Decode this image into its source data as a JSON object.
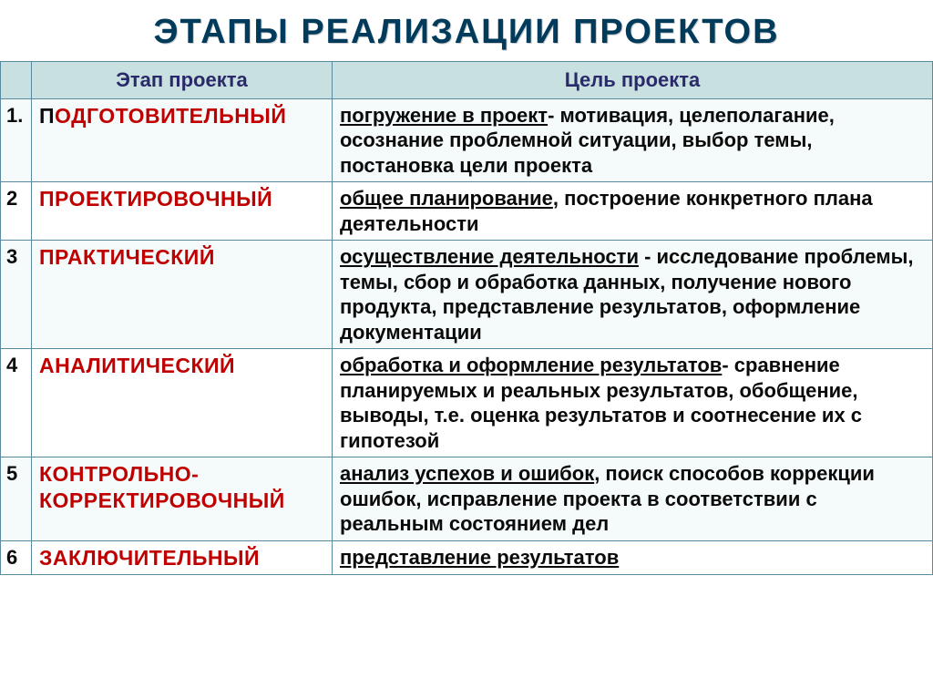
{
  "title": "ЭТАПЫ  РЕАЛИЗАЦИИ  ПРОЕКТОВ",
  "headers": {
    "stage": "Этап проекта",
    "goal": "Цель проекта"
  },
  "rows": [
    {
      "num": "1.",
      "stage_black_first": "П",
      "stage_rest": "ОДГОТОВИТЕЛЬНЫЙ",
      "goal_u": "погружение в проект",
      "goal_rest": "- мотивация, целеполагание, осознание проблемной ситуации, выбор темы, постановка цели проекта"
    },
    {
      "num": "2",
      "stage": "ПРОЕКТИРОВОЧНЫЙ",
      "goal_u": "общее планирование",
      "goal_rest": ",  построение конкретного плана деятельности"
    },
    {
      "num": "3",
      "stage": "ПРАКТИЧЕСКИЙ",
      "goal_u": "осуществление деятельности",
      "goal_rest": " - исследование проблемы, темы, сбор и обработка данных, получение нового продукта, представление результатов, оформление документации"
    },
    {
      "num": "4",
      "stage": "АНАЛИТИЧЕСКИЙ",
      "goal_u": "обработка и оформление результатов",
      "goal_rest": "- сравнение планируемых и реальных результатов, обобщение, выводы, т.е. оценка результатов и соотнесение их с гипотезой"
    },
    {
      "num": "5",
      "stage": "КОНТРОЛЬНО-КОРРЕКТИРОВОЧНЫЙ",
      "goal_u": "анализ успехов и ошибок",
      "goal_rest": ", поиск способов коррекции ошибок, исправление проекта в соответствии с реальным состоянием дел"
    },
    {
      "num": "6",
      "stage": "ЗАКЛЮЧИТЕЛЬНЫЙ",
      "goal_u": "представление результатов",
      "goal_rest": ""
    }
  ],
  "colors": {
    "title": "#003b5c",
    "header_bg": "#c8e0e0",
    "header_text": "#2a2a6a",
    "border": "#5a8aa0",
    "stage_red": "#c00000",
    "text": "#0a0a0a"
  },
  "fonts": {
    "title_size": 38,
    "cell_size": 22,
    "stage_size": 23
  }
}
